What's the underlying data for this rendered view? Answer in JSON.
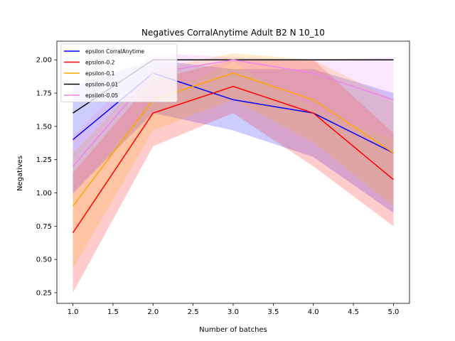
{
  "chart_data": {
    "type": "line",
    "title": "Negatives CorralAnytime Adult B2 N 10_10",
    "xlabel": "Number of batches",
    "ylabel": "Negatives",
    "xlim": [
      0.8,
      5.2
    ],
    "ylim": [
      0.17,
      2.14
    ],
    "xticks": [
      1.0,
      1.5,
      2.0,
      2.5,
      3.0,
      3.5,
      4.0,
      4.5,
      5.0
    ],
    "xtick_labels": [
      "1.0",
      "1.5",
      "2.0",
      "2.5",
      "3.0",
      "3.5",
      "4.0",
      "4.5",
      "5.0"
    ],
    "yticks": [
      0.25,
      0.5,
      0.75,
      1.0,
      1.25,
      1.5,
      1.75,
      2.0
    ],
    "ytick_labels": [
      "0.25",
      "0.50",
      "0.75",
      "1.00",
      "1.25",
      "1.50",
      "1.75",
      "2.00"
    ],
    "grid": false,
    "legend_position": "top-left",
    "x": [
      1,
      2,
      3,
      4,
      5
    ],
    "series": [
      {
        "name": "epsilon CorralAnytime",
        "color": "#0000ff",
        "values": [
          1.4,
          1.9,
          1.7,
          1.6,
          1.3
        ],
        "lower": [
          1.0,
          1.6,
          1.47,
          1.27,
          0.85
        ],
        "upper": [
          1.8,
          2.0,
          1.93,
          1.93,
          1.75
        ]
      },
      {
        "name": "epsilon-0.2",
        "color": "#ff0000",
        "values": [
          0.7,
          1.6,
          1.8,
          1.6,
          1.1
        ],
        "lower": [
          0.25,
          1.35,
          1.6,
          1.2,
          0.75
        ],
        "upper": [
          1.15,
          1.85,
          2.0,
          2.0,
          1.45
        ]
      },
      {
        "name": "epsilon-0.1",
        "color": "#ffa500",
        "values": [
          0.9,
          1.7,
          1.9,
          1.7,
          1.3
        ],
        "lower": [
          0.43,
          1.47,
          1.7,
          1.38,
          0.9
        ],
        "upper": [
          1.3,
          1.93,
          2.05,
          2.0,
          1.7
        ]
      },
      {
        "name": "epsilon-0.01",
        "color": "#000000",
        "values": [
          1.6,
          2.0,
          2.0,
          2.0,
          2.0
        ],
        "lower": [
          1.6,
          2.0,
          2.0,
          2.0,
          2.0
        ],
        "upper": [
          1.6,
          2.0,
          2.0,
          2.0,
          2.0
        ]
      },
      {
        "name": "epsilon-0.05",
        "color": "#ee82ee",
        "values": [
          1.2,
          1.9,
          2.0,
          1.9,
          1.7
        ],
        "lower": [
          0.98,
          1.7,
          1.98,
          1.63,
          1.4
        ],
        "upper": [
          1.42,
          2.05,
          2.02,
          2.0,
          2.02
        ]
      }
    ]
  }
}
